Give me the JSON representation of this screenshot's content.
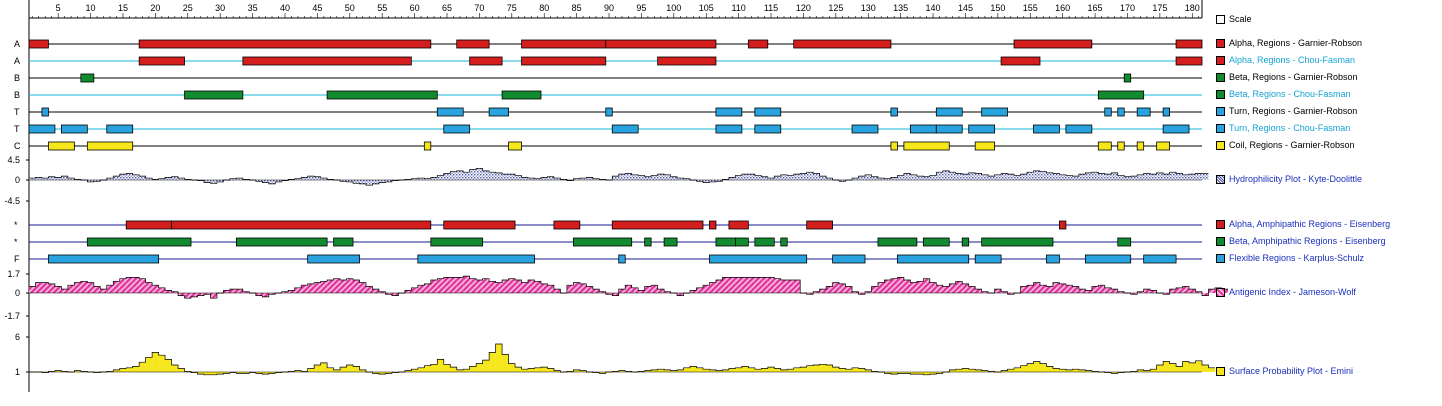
{
  "scale_label": "Scale",
  "ruler_ticks": [
    5,
    10,
    15,
    20,
    25,
    30,
    35,
    40,
    45,
    50,
    55,
    60,
    65,
    70,
    75,
    80,
    85,
    90,
    95,
    100,
    105,
    110,
    115,
    120,
    125,
    130,
    135,
    140,
    145,
    150,
    155,
    160,
    165,
    170,
    175,
    180
  ],
  "colors": {
    "alpha": "#d41d1d",
    "beta": "#128a2f",
    "turn": "#29a3e0",
    "coil": "#f6e71c",
    "hydro": "#7a86c9",
    "antigenic": "#e0319a",
    "surface": "#f6e71c",
    "line_black": "#000000",
    "line_cyan": "#17b8d8",
    "line_navy": "#1b1b8e"
  },
  "chart_data": {
    "type": "protein_sequence_tracks",
    "sequence_length": 181,
    "region_tracks": [
      {
        "id": "alpha-gr",
        "row_label": "A",
        "legend": "Alpha, Regions - Garnier-Robson",
        "color_key": "alpha",
        "line_key": "line_black",
        "legend_style": "black",
        "regions": [
          [
            1,
            3
          ],
          [
            18,
            62
          ],
          [
            67,
            71
          ],
          [
            77,
            89
          ],
          [
            90,
            106
          ],
          [
            112,
            114
          ],
          [
            119,
            133
          ],
          [
            153,
            164
          ],
          [
            178,
            182
          ]
        ]
      },
      {
        "id": "alpha-cf",
        "row_label": "A",
        "legend": "Alpha, Regions - Chou-Fasman",
        "color_key": "alpha",
        "line_key": "line_cyan",
        "legend_style": "cyan",
        "regions": [
          [
            18,
            24
          ],
          [
            34,
            59
          ],
          [
            69,
            73
          ],
          [
            77,
            89
          ],
          [
            98,
            106
          ],
          [
            151,
            156
          ],
          [
            178,
            182
          ]
        ]
      },
      {
        "id": "beta-gr",
        "row_label": "B",
        "legend": "Beta, Regions - Garnier-Robson",
        "color_key": "beta",
        "line_key": "line_black",
        "legend_style": "black",
        "regions": [
          [
            9,
            10
          ],
          [
            170,
            170
          ]
        ]
      },
      {
        "id": "beta-cf",
        "row_label": "B",
        "legend": "Beta, Regions - Chou-Fasman",
        "color_key": "beta",
        "line_key": "line_cyan",
        "legend_style": "cyan",
        "regions": [
          [
            25,
            33
          ],
          [
            47,
            63
          ],
          [
            74,
            79
          ],
          [
            166,
            172
          ]
        ]
      },
      {
        "id": "turn-gr",
        "row_label": "T",
        "legend": "Turn, Regions - Garnier-Robson",
        "color_key": "turn",
        "line_key": "line_black",
        "legend_style": "black",
        "regions": [
          [
            3,
            3
          ],
          [
            64,
            67
          ],
          [
            72,
            74
          ],
          [
            90,
            90
          ],
          [
            107,
            110
          ],
          [
            113,
            116
          ],
          [
            134,
            134
          ],
          [
            141,
            144
          ],
          [
            148,
            151
          ],
          [
            167,
            167
          ],
          [
            169,
            169
          ],
          [
            172,
            173
          ],
          [
            176,
            176
          ]
        ]
      },
      {
        "id": "turn-cf",
        "row_label": "T",
        "legend": "Turn, Regions - Chou-Fasman",
        "color_key": "turn",
        "line_key": "line_cyan",
        "legend_style": "cyan",
        "regions": [
          [
            1,
            4
          ],
          [
            6,
            9
          ],
          [
            13,
            16
          ],
          [
            65,
            68
          ],
          [
            91,
            94
          ],
          [
            107,
            110
          ],
          [
            113,
            116
          ],
          [
            128,
            131
          ],
          [
            137,
            140
          ],
          [
            141,
            144
          ],
          [
            146,
            149
          ],
          [
            156,
            159
          ],
          [
            161,
            164
          ],
          [
            176,
            179
          ]
        ]
      },
      {
        "id": "coil-gr",
        "row_label": "C",
        "legend": "Coil, Regions - Garnier-Robson",
        "color_key": "coil",
        "line_key": "line_black",
        "legend_style": "black",
        "regions": [
          [
            4,
            7
          ],
          [
            10,
            16
          ],
          [
            62,
            62
          ],
          [
            75,
            76
          ],
          [
            134,
            134
          ],
          [
            136,
            142
          ],
          [
            147,
            149
          ],
          [
            166,
            167
          ],
          [
            169,
            169
          ],
          [
            172,
            172
          ],
          [
            175,
            176
          ]
        ]
      },
      {
        "id": "alpha-amph",
        "row_label": "*",
        "legend": "Alpha, Amphipathic Regions - Eisenberg",
        "color_key": "alpha",
        "line_key": "line_navy",
        "legend_style": "blue",
        "regions": [
          [
            16,
            22
          ],
          [
            23,
            62
          ],
          [
            65,
            75
          ],
          [
            82,
            85
          ],
          [
            91,
            104
          ],
          [
            106,
            106
          ],
          [
            109,
            111
          ],
          [
            121,
            124
          ],
          [
            160,
            160
          ]
        ]
      },
      {
        "id": "beta-amph",
        "row_label": "*",
        "legend": "Beta, Amphipathic Regions - Eisenberg",
        "color_key": "beta",
        "line_key": "line_navy",
        "legend_style": "blue",
        "regions": [
          [
            10,
            25
          ],
          [
            33,
            46
          ],
          [
            48,
            50
          ],
          [
            63,
            70
          ],
          [
            85,
            93
          ],
          [
            96,
            96
          ],
          [
            99,
            100
          ],
          [
            107,
            109
          ],
          [
            110,
            111
          ],
          [
            113,
            115
          ],
          [
            117,
            117
          ],
          [
            132,
            137
          ],
          [
            139,
            142
          ],
          [
            145,
            145
          ],
          [
            148,
            158
          ],
          [
            169,
            170
          ]
        ]
      },
      {
        "id": "flex",
        "row_label": "F",
        "legend": "Flexible Regions - Karplus-Schulz",
        "color_key": "turn",
        "line_key": "line_navy",
        "legend_style": "blue",
        "regions": [
          [
            4,
            20
          ],
          [
            44,
            51
          ],
          [
            61,
            78
          ],
          [
            92,
            92
          ],
          [
            106,
            120
          ],
          [
            125,
            129
          ],
          [
            135,
            145
          ],
          [
            147,
            150
          ],
          [
            158,
            159
          ],
          [
            164,
            170
          ],
          [
            173,
            177
          ]
        ]
      }
    ],
    "value_plots": [
      {
        "id": "hydro",
        "legend": "Hydrophilicity Plot - Kyte-Doolittle",
        "legend_style": "blue",
        "color_key": "hydro",
        "pattern": "dots",
        "axis_labels": [
          "4.5",
          "0",
          "-4.5"
        ],
        "ylim": [
          -4.5,
          4.5
        ],
        "values": [
          0.3,
          0.4,
          0.3,
          0.5,
          0.4,
          0.6,
          0.3,
          0.1,
          0.0,
          -0.3,
          -0.2,
          0.0,
          0.3,
          0.6,
          0.9,
          1.0,
          0.8,
          0.6,
          0.3,
          0.1,
          0.2,
          0.4,
          0.5,
          0.3,
          0.1,
          0.0,
          -0.1,
          -0.4,
          -0.5,
          -0.3,
          0.0,
          0.2,
          0.3,
          0.1,
          0.0,
          -0.2,
          -0.4,
          -0.6,
          -0.3,
          -0.1,
          0.1,
          0.2,
          0.4,
          0.6,
          0.5,
          0.3,
          0.1,
          0.0,
          -0.2,
          -0.3,
          -0.5,
          -0.6,
          -0.8,
          -0.6,
          -0.4,
          -0.3,
          -0.1,
          0.0,
          0.1,
          0.2,
          0.3,
          0.2,
          0.4,
          0.7,
          1.0,
          1.3,
          1.4,
          1.2,
          1.6,
          1.8,
          1.4,
          1.2,
          1.1,
          0.9,
          0.9,
          0.7,
          0.4,
          0.3,
          0.2,
          0.4,
          0.5,
          0.3,
          0.1,
          -0.1,
          0.2,
          0.3,
          0.4,
          0.2,
          0.1,
          0.0,
          0.6,
          0.9,
          1.0,
          0.8,
          0.7,
          0.5,
          0.7,
          0.9,
          0.8,
          0.5,
          0.3,
          0.2,
          0.0,
          -0.2,
          -0.4,
          -0.3,
          -0.2,
          0.1,
          0.4,
          0.7,
          0.9,
          0.9,
          0.7,
          0.5,
          0.3,
          0.6,
          0.8,
          0.7,
          0.9,
          1.0,
          1.2,
          1.0,
          0.6,
          0.3,
          0.0,
          -0.2,
          0.0,
          0.3,
          0.6,
          0.8,
          0.5,
          0.3,
          0.2,
          0.4,
          0.7,
          1.0,
          0.8,
          0.6,
          0.5,
          0.7,
          1.2,
          1.4,
          1.2,
          1.0,
          0.9,
          1.1,
          1.0,
          0.8,
          0.6,
          0.8,
          1.0,
          0.9,
          0.7,
          0.9,
          1.2,
          1.4,
          1.3,
          1.1,
          1.0,
          0.8,
          0.7,
          0.6,
          0.9,
          1.1,
          1.2,
          1.0,
          0.9,
          1.1,
          0.7,
          0.5,
          0.6,
          0.8,
          1.0,
          0.9,
          1.1,
          0.9,
          1.2,
          1.0,
          0.8,
          0.9,
          1.0,
          1.0
        ]
      },
      {
        "id": "antigenic",
        "legend": "Antigenic Index - Jameson-Wolf",
        "legend_style": "blue",
        "color_key": "antigenic",
        "pattern": "hatch",
        "axis_labels": [
          "1.7",
          "0",
          "-1.7"
        ],
        "ylim": [
          -1.7,
          1.7
        ],
        "values": [
          0.5,
          0.8,
          0.8,
          0.7,
          0.5,
          0.3,
          0.6,
          0.8,
          0.9,
          0.8,
          0.5,
          0.3,
          0.6,
          0.9,
          1.1,
          1.2,
          1.2,
          1.1,
          0.8,
          0.6,
          0.4,
          0.2,
          0.1,
          -0.2,
          -0.4,
          -0.3,
          -0.2,
          -0.1,
          -0.4,
          0.0,
          0.2,
          0.3,
          0.3,
          0.1,
          0.0,
          -0.2,
          -0.3,
          -0.1,
          0.0,
          0.1,
          0.2,
          0.4,
          0.6,
          0.7,
          0.8,
          0.9,
          1.0,
          1.1,
          1.0,
          1.1,
          1.0,
          0.8,
          0.5,
          0.3,
          0.1,
          -0.1,
          -0.2,
          0.0,
          0.2,
          0.4,
          0.6,
          0.7,
          1.0,
          1.1,
          1.2,
          1.2,
          1.2,
          1.3,
          1.1,
          1.0,
          1.1,
          0.9,
          0.8,
          1.0,
          1.1,
          1.0,
          0.8,
          1.0,
          0.9,
          0.7,
          0.6,
          0.3,
          0.0,
          0.6,
          0.8,
          0.7,
          0.5,
          0.3,
          0.1,
          -0.1,
          -0.2,
          0.3,
          0.6,
          0.4,
          0.2,
          0.5,
          0.6,
          0.3,
          0.1,
          0.0,
          -0.2,
          0.0,
          0.2,
          0.4,
          0.6,
          0.8,
          1.0,
          1.2,
          1.2,
          1.2,
          1.2,
          1.2,
          1.2,
          1.2,
          1.2,
          1.1,
          1.0,
          1.0,
          1.0,
          0.0,
          -0.1,
          0.1,
          0.3,
          0.5,
          0.8,
          0.7,
          0.5,
          0.1,
          -0.1,
          0.1,
          0.5,
          0.8,
          1.0,
          1.1,
          1.2,
          1.0,
          0.8,
          0.9,
          1.1,
          0.8,
          0.6,
          0.5,
          0.7,
          0.9,
          0.7,
          0.5,
          0.3,
          0.1,
          0.0,
          0.3,
          0.1,
          -0.1,
          0.0,
          0.5,
          0.6,
          0.8,
          0.6,
          0.5,
          0.8,
          0.7,
          0.6,
          0.5,
          0.3,
          0.2,
          0.5,
          0.6,
          0.4,
          0.3,
          0.1,
          0.0,
          -0.1,
          0.1,
          0.3,
          0.2,
          0.0,
          -0.1,
          0.3,
          0.4,
          0.5,
          0.3,
          0.1,
          -0.2,
          0.3,
          0.4,
          0.3
        ]
      },
      {
        "id": "surface",
        "legend": "Surface Probability Plot - Emini",
        "legend_style": "blue",
        "color_key": "surface",
        "pattern": "solid",
        "axis_labels": [
          "6",
          "1"
        ],
        "ylim": [
          0,
          6
        ],
        "baseline": 1,
        "values": [
          1.0,
          1.0,
          0.9,
          1.1,
          1.2,
          1.1,
          1.0,
          1.2,
          1.1,
          1.0,
          0.9,
          1.0,
          1.1,
          1.3,
          1.5,
          1.6,
          1.8,
          2.4,
          3.1,
          3.8,
          3.4,
          2.8,
          2.0,
          1.5,
          1.1,
          0.9,
          0.7,
          0.6,
          0.6,
          0.7,
          0.8,
          0.9,
          0.8,
          0.8,
          0.9,
          0.8,
          0.7,
          0.8,
          0.9,
          1.0,
          1.1,
          1.2,
          1.1,
          1.5,
          2.0,
          2.3,
          1.6,
          1.3,
          1.7,
          2.0,
          1.8,
          1.3,
          1.0,
          0.8,
          0.7,
          0.8,
          0.9,
          1.0,
          1.2,
          1.4,
          1.6,
          1.9,
          2.1,
          2.8,
          2.1,
          1.7,
          1.3,
          1.4,
          1.8,
          2.2,
          2.7,
          3.8,
          5.0,
          3.5,
          2.2,
          1.7,
          1.4,
          1.5,
          1.6,
          1.7,
          1.5,
          1.2,
          1.0,
          1.1,
          1.3,
          1.2,
          1.0,
          0.9,
          0.8,
          1.0,
          1.1,
          1.2,
          1.1,
          1.0,
          1.1,
          1.2,
          1.3,
          1.4,
          1.3,
          1.2,
          1.3,
          1.6,
          1.8,
          1.6,
          1.4,
          1.3,
          1.2,
          1.3,
          1.5,
          1.6,
          1.8,
          1.6,
          1.4,
          1.5,
          1.7,
          1.5,
          1.3,
          1.4,
          1.6,
          1.7,
          1.9,
          2.0,
          2.1,
          2.0,
          1.7,
          1.5,
          1.4,
          1.6,
          1.5,
          1.3,
          1.1,
          1.0,
          0.8,
          0.7,
          0.8,
          0.8,
          0.7,
          0.7,
          0.6,
          0.7,
          0.8,
          1.0,
          1.3,
          1.4,
          1.5,
          1.4,
          1.3,
          1.2,
          1.1,
          1.0,
          1.2,
          1.4,
          1.6,
          1.9,
          2.2,
          2.5,
          2.2,
          1.8,
          1.5,
          1.4,
          1.3,
          1.4,
          1.3,
          1.2,
          1.1,
          1.0,
          0.9,
          0.8,
          0.9,
          1.0,
          1.1,
          1.3,
          1.2,
          1.4,
          2.0,
          2.5,
          2.2,
          1.8,
          2.5,
          2.3,
          2.6,
          2.0,
          1.6
        ]
      }
    ]
  }
}
